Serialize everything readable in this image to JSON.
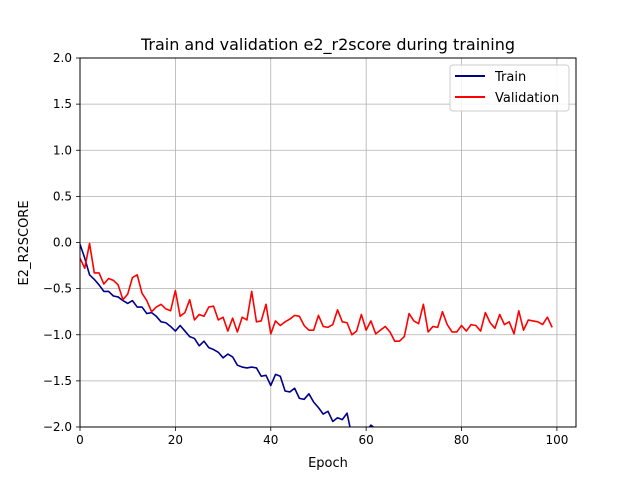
{
  "chart_data": {
    "type": "line",
    "title": "Train and validation e2_r2score during training",
    "xlabel": "Epoch",
    "ylabel": "E2_R2SCORE",
    "xlim": [
      0,
      104
    ],
    "ylim": [
      -2.0,
      2.0
    ],
    "xticks": [
      0,
      20,
      40,
      60,
      80,
      100
    ],
    "xtick_labels": [
      "0",
      "20",
      "40",
      "60",
      "80",
      "100"
    ],
    "yticks": [
      -2.0,
      -1.5,
      -1.0,
      -0.5,
      0.0,
      0.5,
      1.0,
      1.5,
      2.0
    ],
    "ytick_labels": [
      "−2.0",
      "−1.5",
      "−1.0",
      "−0.5",
      "0.0",
      "0.5",
      "1.0",
      "1.5",
      "2.0"
    ],
    "grid": true,
    "legend_position": "top-right",
    "series": [
      {
        "name": "Train",
        "color": "#00008b",
        "x": [
          0,
          1,
          2,
          3,
          4,
          5,
          6,
          7,
          8,
          9,
          10,
          11,
          12,
          13,
          14,
          15,
          16,
          17,
          18,
          19,
          20,
          21,
          22,
          23,
          24,
          25,
          26,
          27,
          28,
          29,
          30,
          31,
          32,
          33,
          34,
          35,
          36,
          37,
          38,
          39,
          40,
          41,
          42,
          43,
          44,
          45,
          46,
          47,
          48,
          49,
          50,
          51,
          52,
          53,
          54,
          55,
          56,
          57,
          58,
          59,
          60,
          61,
          62
        ],
        "y": [
          -0.02,
          -0.17,
          -0.35,
          -0.4,
          -0.46,
          -0.53,
          -0.53,
          -0.58,
          -0.59,
          -0.63,
          -0.66,
          -0.63,
          -0.7,
          -0.7,
          -0.77,
          -0.76,
          -0.8,
          -0.86,
          -0.87,
          -0.91,
          -0.96,
          -0.9,
          -0.96,
          -1.02,
          -1.04,
          -1.12,
          -1.07,
          -1.14,
          -1.16,
          -1.19,
          -1.25,
          -1.21,
          -1.24,
          -1.33,
          -1.35,
          -1.36,
          -1.35,
          -1.36,
          -1.45,
          -1.44,
          -1.55,
          -1.43,
          -1.45,
          -1.61,
          -1.62,
          -1.58,
          -1.69,
          -1.7,
          -1.64,
          -1.73,
          -1.79,
          -1.86,
          -1.83,
          -1.94,
          -1.9,
          -1.92,
          -1.85,
          -2.1,
          -2.15,
          -2.2,
          -2.05,
          -1.98,
          -2.02
        ]
      },
      {
        "name": "Validation",
        "color": "#ff0000",
        "x": [
          0,
          1,
          2,
          3,
          4,
          5,
          6,
          7,
          8,
          9,
          10,
          11,
          12,
          13,
          14,
          15,
          16,
          17,
          18,
          19,
          20,
          21,
          22,
          23,
          24,
          25,
          26,
          27,
          28,
          29,
          30,
          31,
          32,
          33,
          34,
          35,
          36,
          37,
          38,
          39,
          40,
          41,
          42,
          43,
          44,
          45,
          46,
          47,
          48,
          49,
          50,
          51,
          52,
          53,
          54,
          55,
          56,
          57,
          58,
          59,
          60,
          61,
          62,
          63,
          64,
          65,
          66,
          67,
          68,
          69,
          70,
          71,
          72,
          73,
          74,
          75,
          76,
          77,
          78,
          79,
          80,
          81,
          82,
          83,
          84,
          85,
          86,
          87,
          88,
          89,
          90,
          91,
          92,
          93,
          94,
          95,
          96,
          97,
          98,
          99
        ],
        "y": [
          -0.17,
          -0.28,
          -0.01,
          -0.33,
          -0.33,
          -0.45,
          -0.39,
          -0.41,
          -0.46,
          -0.62,
          -0.56,
          -0.38,
          -0.35,
          -0.55,
          -0.63,
          -0.75,
          -0.7,
          -0.67,
          -0.72,
          -0.74,
          -0.52,
          -0.8,
          -0.76,
          -0.62,
          -0.84,
          -0.78,
          -0.8,
          -0.7,
          -0.69,
          -0.84,
          -0.81,
          -0.96,
          -0.82,
          -0.97,
          -0.81,
          -0.84,
          -0.53,
          -0.86,
          -0.85,
          -0.67,
          -0.99,
          -0.85,
          -0.9,
          -0.86,
          -0.83,
          -0.79,
          -0.8,
          -0.9,
          -0.95,
          -0.95,
          -0.79,
          -0.91,
          -0.92,
          -0.89,
          -0.73,
          -0.86,
          -0.87,
          -1.0,
          -0.96,
          -0.78,
          -0.95,
          -0.85,
          -0.99,
          -0.95,
          -0.91,
          -0.97,
          -1.07,
          -1.07,
          -1.02,
          -0.77,
          -0.85,
          -0.88,
          -0.67,
          -0.97,
          -0.91,
          -0.92,
          -0.75,
          -0.89,
          -0.97,
          -0.97,
          -0.9,
          -0.96,
          -0.89,
          -0.9,
          -0.96,
          -0.76,
          -0.87,
          -0.93,
          -0.78,
          -0.89,
          -0.86,
          -0.99,
          -0.74,
          -0.95,
          -0.84,
          -0.85,
          -0.86,
          -0.89,
          -0.81,
          -0.92
        ]
      }
    ]
  }
}
